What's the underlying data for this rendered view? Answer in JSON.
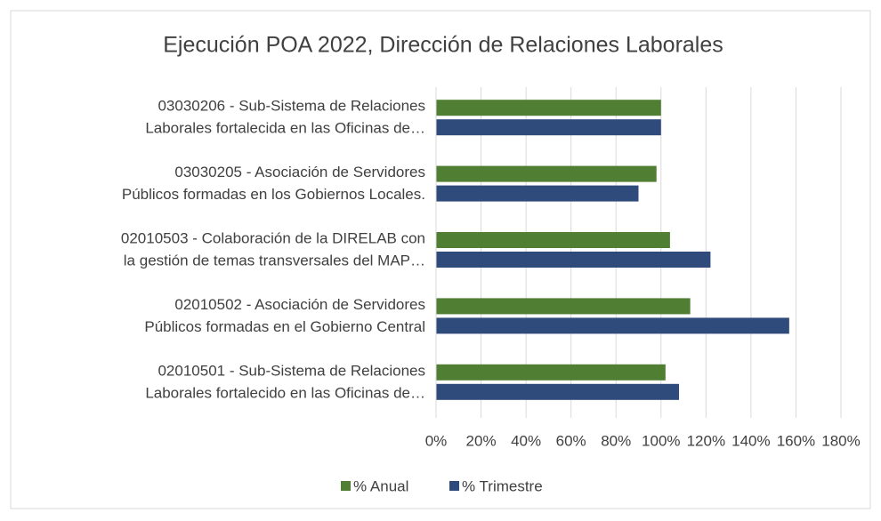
{
  "chart_data": {
    "type": "barh",
    "title": "Ejecución POA 2022, Dirección de Relaciones Laborales",
    "categories": [
      [
        "03030206 - Sub-Sistema de Relaciones",
        "Laborales fortalecida en las Oficinas de…"
      ],
      [
        "03030205 - Asociación de Servidores",
        "Públicos formadas en los Gobiernos Locales."
      ],
      [
        "02010503 - Colaboración de la DIRELAB con",
        "la gestión de temas transversales del MAP…"
      ],
      [
        "02010502 - Asociación de Servidores",
        "Públicos formadas en el Gobierno Central"
      ],
      [
        "02010501 - Sub-Sistema de Relaciones",
        "Laborales fortalecido en las Oficinas de…"
      ]
    ],
    "series": [
      {
        "name": "% Anual",
        "color": "#507e32",
        "values": [
          100,
          98,
          104,
          113,
          102
        ]
      },
      {
        "name": "% Trimestre",
        "color": "#2f4b7c",
        "values": [
          100,
          90,
          122,
          157,
          108
        ]
      }
    ],
    "xlim": [
      0,
      180
    ],
    "xticks": [
      {
        "value": 0,
        "label": "0%"
      },
      {
        "value": 20,
        "label": "20%"
      },
      {
        "value": 40,
        "label": "40%"
      },
      {
        "value": 60,
        "label": "60%"
      },
      {
        "value": 80,
        "label": "80%"
      },
      {
        "value": 100,
        "label": "100%"
      },
      {
        "value": 120,
        "label": "120%"
      },
      {
        "value": 140,
        "label": "140%"
      },
      {
        "value": 160,
        "label": "160%"
      },
      {
        "value": 180,
        "label": "180%"
      }
    ],
    "grid": true,
    "legend": "bottom"
  }
}
